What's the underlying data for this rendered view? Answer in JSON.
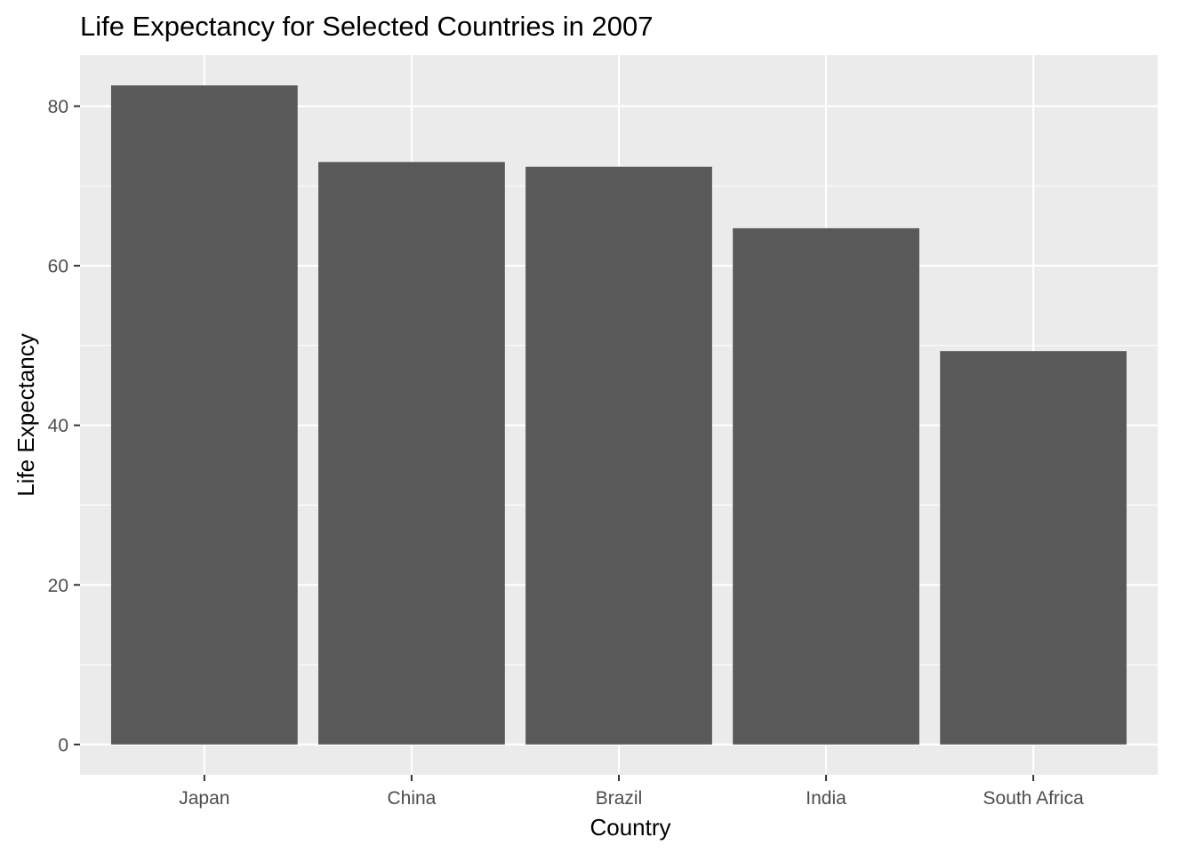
{
  "chart_data": {
    "type": "bar",
    "title": "Life Expectancy for Selected Countries in 2007",
    "xlabel": "Country",
    "ylabel": "Life Expectancy",
    "categories": [
      "Japan",
      "China",
      "Brazil",
      "India",
      "South Africa"
    ],
    "values": [
      82.6,
      73.0,
      72.4,
      64.7,
      49.3
    ],
    "ylim": [
      -3.8,
      86.4
    ],
    "yticks": [
      0,
      20,
      40,
      60,
      80
    ],
    "ytick_labels": [
      "0",
      "20",
      "40",
      "60",
      "80"
    ],
    "grid": true,
    "legend": "none",
    "colors": {
      "bar": "#595959",
      "panel": "#ebebeb",
      "grid": "#ffffff",
      "tick": "#333333"
    }
  }
}
